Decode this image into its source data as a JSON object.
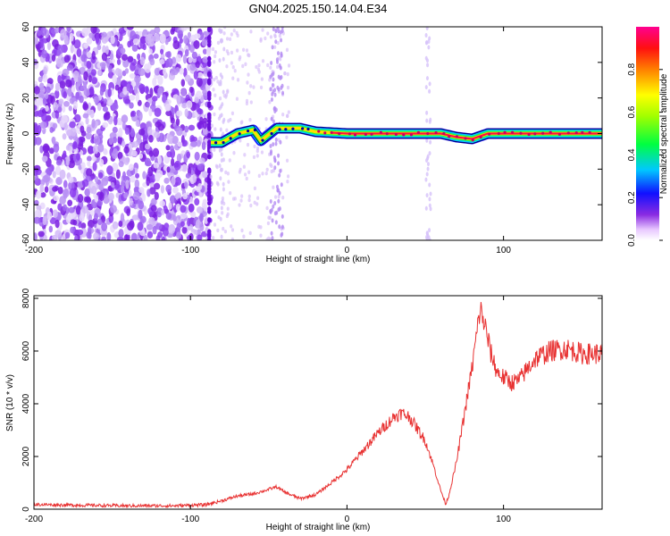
{
  "title": "GN04.2025.150.14.04.E34",
  "chart_data": [
    {
      "type": "heatmap",
      "xlabel": "Height of straight line (km)",
      "ylabel": "Frequency (Hz)",
      "xlim": [
        -200,
        163
      ],
      "ylim": [
        -60,
        60
      ],
      "xticks": [
        -200,
        -100,
        0,
        100
      ],
      "yticks": [
        -60,
        -40,
        -20,
        0,
        20,
        40,
        60
      ],
      "colorbar": {
        "label": "Normalized spectral amplitude",
        "range": [
          0,
          1
        ],
        "ticks": [
          0.0,
          0.2,
          0.4,
          0.6,
          0.8
        ],
        "colormap": "rainbow (white-purple-blue-cyan-green-yellow-red-magenta)"
      },
      "features": {
        "noise_region_x": [
          -200,
          -87
        ],
        "signal_ridge": [
          {
            "x": -87,
            "y": -5
          },
          {
            "x": -80,
            "y": -5
          },
          {
            "x": -70,
            "y": 0
          },
          {
            "x": -60,
            "y": 2
          },
          {
            "x": -55,
            "y": -4
          },
          {
            "x": -45,
            "y": 3
          },
          {
            "x": -30,
            "y": 3
          },
          {
            "x": -20,
            "y": 1
          },
          {
            "x": 0,
            "y": 0
          },
          {
            "x": 60,
            "y": 0
          },
          {
            "x": 70,
            "y": -2
          },
          {
            "x": 80,
            "y": -3
          },
          {
            "x": 90,
            "y": 0
          },
          {
            "x": 163,
            "y": 0
          }
        ],
        "vertical_streaks_x": [
          -80,
          -45,
          52
        ]
      }
    },
    {
      "type": "line",
      "xlabel": "Height of straight line (km)",
      "ylabel": "SNR (10 * v/v)",
      "xlim": [
        -200,
        163
      ],
      "ylim": [
        0,
        8100
      ],
      "xticks": [
        -200,
        -100,
        0,
        100
      ],
      "yticks": [
        0,
        2000,
        4000,
        6000,
        8000
      ],
      "color": "#e83232",
      "series": [
        {
          "x": [
            -200,
            -170,
            -140,
            -110,
            -90,
            -80,
            -70,
            -60,
            -50,
            -45,
            -40,
            -30,
            -20,
            -10,
            0,
            10,
            20,
            30,
            35,
            40,
            50,
            55,
            60,
            63,
            65,
            70,
            75,
            80,
            83,
            85,
            88,
            92,
            96,
            100,
            105,
            110,
            115,
            120,
            130,
            140,
            150,
            163
          ],
          "y": [
            180,
            150,
            130,
            130,
            170,
            320,
            500,
            580,
            750,
            850,
            650,
            400,
            550,
            1000,
            1500,
            2200,
            2900,
            3500,
            3650,
            3500,
            2600,
            1700,
            700,
            200,
            500,
            1800,
            3600,
            5400,
            6700,
            7600,
            7000,
            5900,
            5200,
            5000,
            4800,
            4900,
            5300,
            5700,
            6000,
            6100,
            5900,
            5900
          ]
        }
      ]
    }
  ]
}
